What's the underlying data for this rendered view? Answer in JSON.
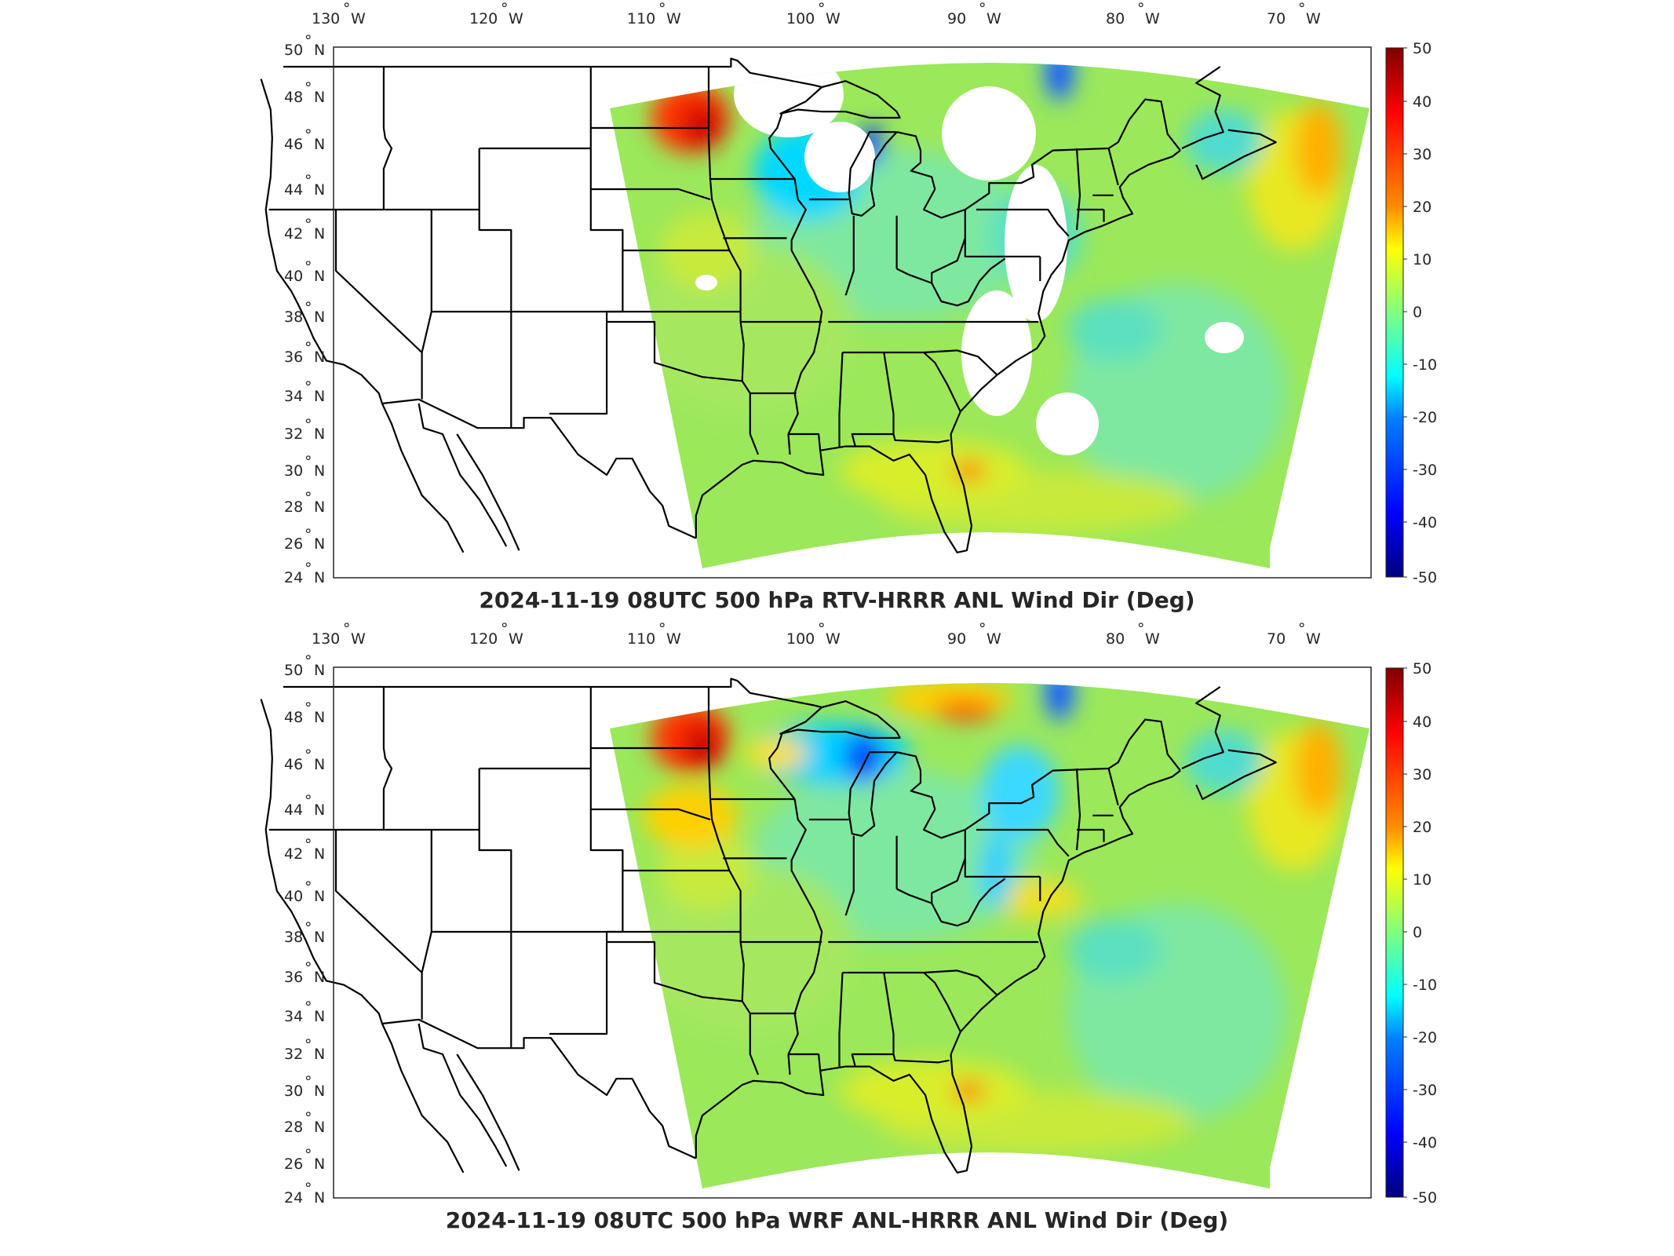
{
  "panels": [
    {
      "title": "2024-11-19 08UTC 500 hPa RTV-HRRR ANL Wind Dir (Deg)",
      "variant": "rtv"
    },
    {
      "title": "2024-11-19 08UTC 500 hPa WRF ANL-HRRR ANL Wind Dir (Deg)",
      "variant": "wrf"
    }
  ],
  "lon_ticks": [
    "130",
    "120",
    "110",
    "100",
    "90",
    "80",
    "70"
  ],
  "lon_suffix": "W",
  "lat_ticks": [
    "50",
    "48",
    "46",
    "44",
    "42",
    "40",
    "38",
    "36",
    "34",
    "32",
    "30",
    "28",
    "26",
    "24"
  ],
  "lat_suffix": "N",
  "colorbar": {
    "ticks": [
      "50",
      "40",
      "30",
      "20",
      "10",
      "0",
      "-10",
      "-20",
      "-30",
      "-40",
      "-50"
    ],
    "range": [
      -50,
      50
    ],
    "colormap": "jet"
  }
}
